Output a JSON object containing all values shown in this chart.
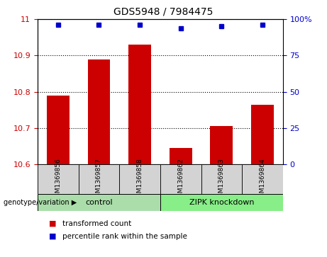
{
  "title": "GDS5948 / 7984475",
  "categories": [
    "GSM1369856",
    "GSM1369857",
    "GSM1369858",
    "GSM1369862",
    "GSM1369863",
    "GSM1369864"
  ],
  "bar_values": [
    10.79,
    10.89,
    10.93,
    10.645,
    10.705,
    10.765
  ],
  "percentile_values": [
    96,
    96,
    96,
    94,
    95,
    96
  ],
  "ylim_left": [
    10.6,
    11.0
  ],
  "ylim_right": [
    0,
    100
  ],
  "yticks_left": [
    10.6,
    10.7,
    10.8,
    10.9,
    11.0
  ],
  "ytick_labels_left": [
    "10.6",
    "10.7",
    "10.8",
    "10.9",
    "11"
  ],
  "yticks_right": [
    0,
    25,
    50,
    75,
    100
  ],
  "ytick_labels_right": [
    "0",
    "25",
    "50",
    "75",
    "100%"
  ],
  "bar_color": "#cc0000",
  "dot_color": "#0000cc",
  "bar_width": 0.55,
  "group_colors": [
    "#aaddaa",
    "#88ee88"
  ],
  "legend_items": [
    {
      "label": "transformed count",
      "color": "#cc0000"
    },
    {
      "label": "percentile rank within the sample",
      "color": "#0000cc"
    }
  ],
  "bg_color": "#d3d3d3",
  "plot_bg": "#ffffff",
  "dotted_grid": [
    10.7,
    10.8,
    10.9
  ]
}
